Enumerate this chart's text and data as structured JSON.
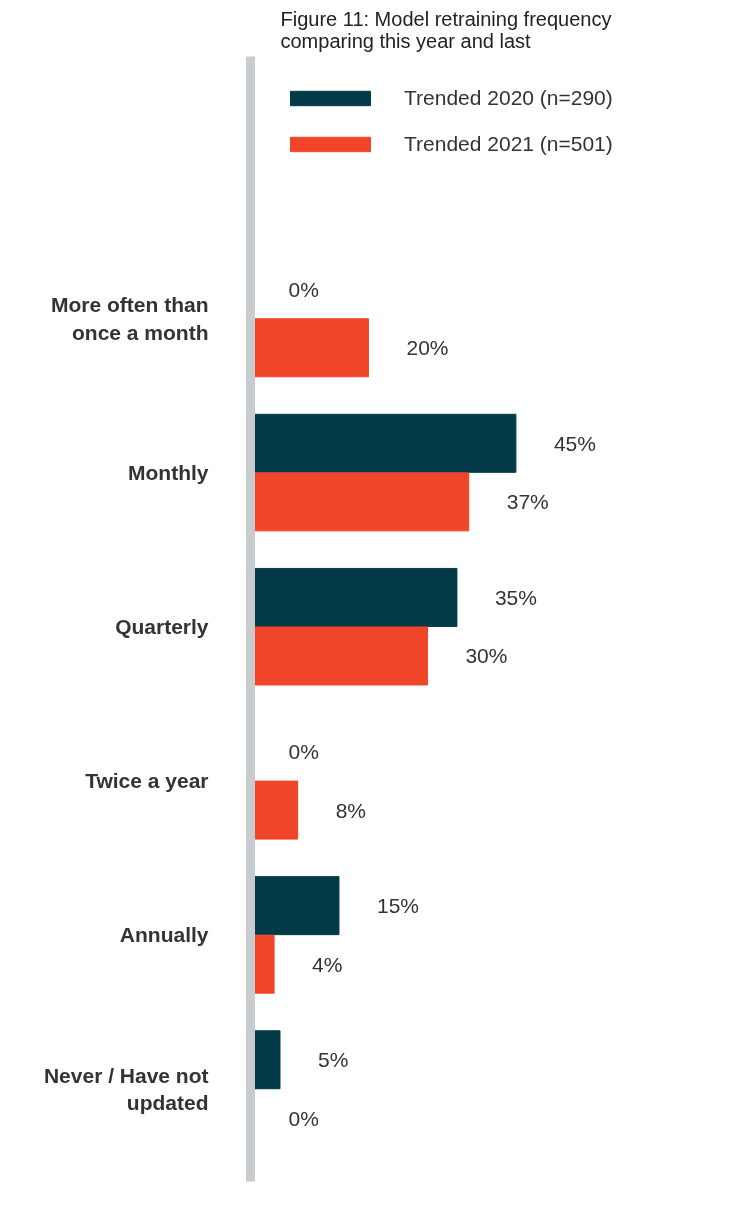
{
  "chart_data": {
    "type": "bar",
    "orientation": "horizontal",
    "title": "Figure 11: Model retraining frequency comparing this year and last",
    "categories": [
      "More often than once a month",
      "Monthly",
      "Quarterly",
      "Twice a year",
      "Annually",
      "Never / Have not updated"
    ],
    "series": [
      {
        "name": "Trended 2020 (n=290)",
        "color": "#033a47",
        "values": [
          0,
          45,
          35,
          0,
          15,
          5
        ],
        "value_labels": [
          "0%",
          "45%",
          "35%",
          "0%",
          "15%",
          "5%"
        ]
      },
      {
        "name": "Trended 2021 (n=501)",
        "color": "#f04529",
        "values": [
          20,
          37,
          30,
          8,
          4,
          0
        ],
        "value_labels": [
          "20%",
          "37%",
          "30%",
          "8%",
          "4%",
          "0%"
        ]
      }
    ],
    "legend": "top",
    "tick_labels": "y",
    "grid": false
  }
}
